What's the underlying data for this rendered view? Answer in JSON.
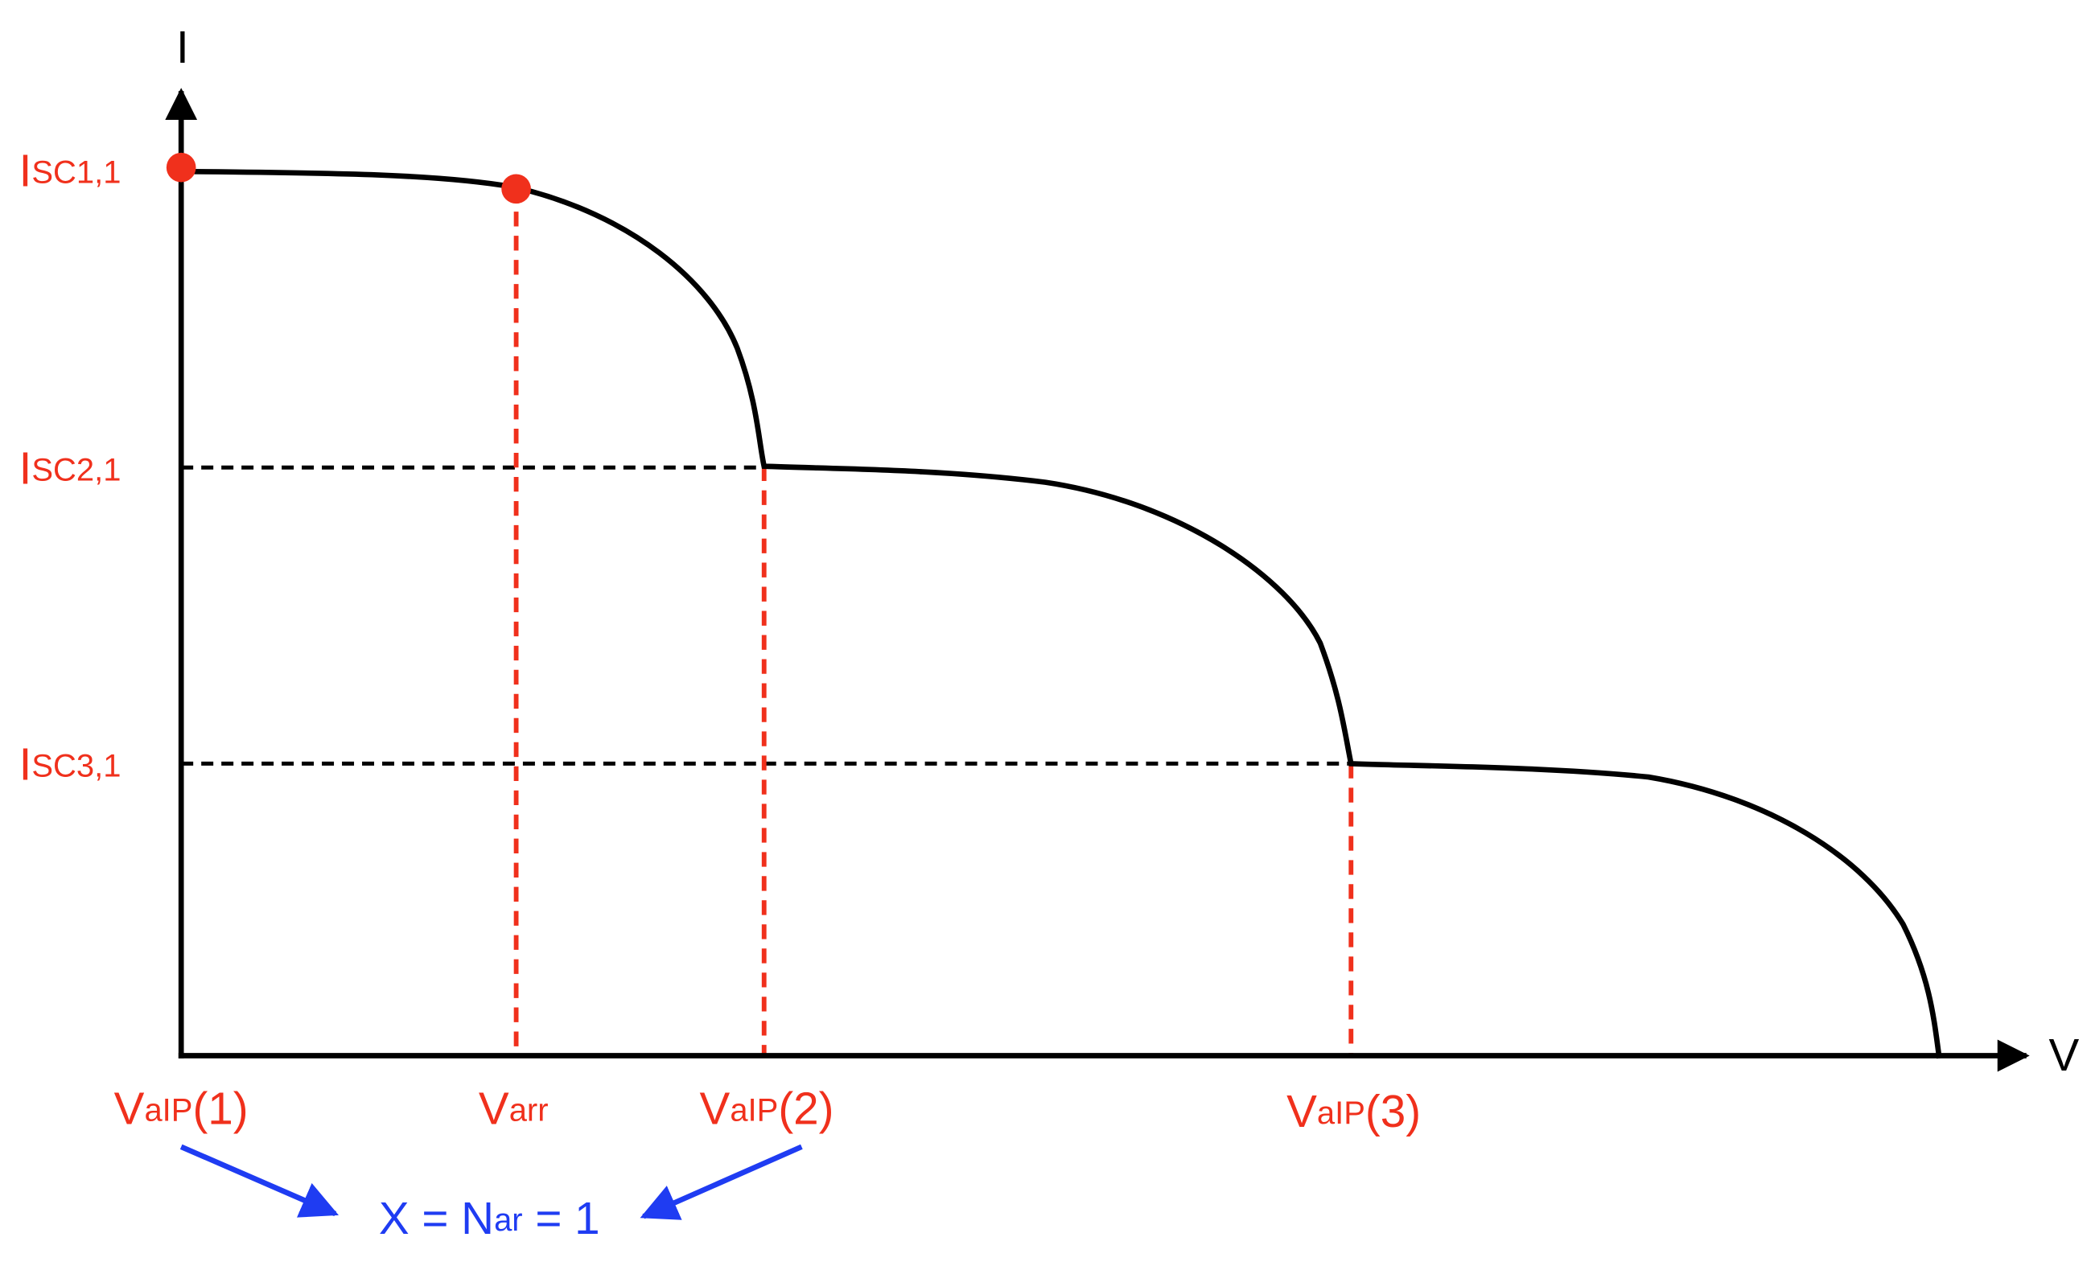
{
  "axes": {
    "y_label": "I",
    "x_label": "V"
  },
  "y_labels": [
    {
      "main": "I",
      "sub": "SC1,1"
    },
    {
      "main": "I",
      "sub": "SC2,1"
    },
    {
      "main": "I",
      "sub": "SC3,1"
    }
  ],
  "x_labels": [
    {
      "main": "V",
      "sub": "aIP",
      "suffix": "(1)"
    },
    {
      "main": "V",
      "sub": "arr"
    },
    {
      "main": "V",
      "sub": "aIP",
      "suffix": "(2)"
    },
    {
      "main": "V",
      "sub": "aIP",
      "suffix": "(3)"
    }
  ],
  "annotation": {
    "main": "X = N",
    "sub": "ar",
    "suffix": " = 1"
  }
}
